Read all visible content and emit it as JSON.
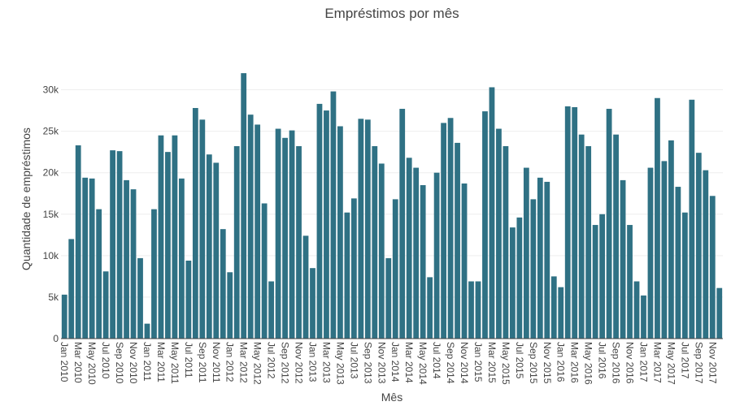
{
  "chart_data": {
    "type": "bar",
    "title": "Empréstimos por mês",
    "xlabel": "Mês",
    "ylabel": "Quantidade de empréstimos",
    "ylim": [
      0,
      32500
    ],
    "yticks": [
      0,
      5000,
      10000,
      15000,
      20000,
      25000,
      30000
    ],
    "ytick_labels": [
      "0",
      "5k",
      "10k",
      "15k",
      "20k",
      "25k",
      "30k"
    ],
    "grid": true,
    "bar_color": "#2f7184",
    "categories": [
      "Jan 2010",
      "Feb 2010",
      "Mar 2010",
      "Apr 2010",
      "May 2010",
      "Jun 2010",
      "Jul 2010",
      "Aug 2010",
      "Sep 2010",
      "Oct 2010",
      "Nov 2010",
      "Dec 2010",
      "Jan 2011",
      "Feb 2011",
      "Mar 2011",
      "Apr 2011",
      "May 2011",
      "Jun 2011",
      "Jul 2011",
      "Aug 2011",
      "Sep 2011",
      "Oct 2011",
      "Nov 2011",
      "Dec 2011",
      "Jan 2012",
      "Feb 2012",
      "Mar 2012",
      "Apr 2012",
      "May 2012",
      "Jun 2012",
      "Jul 2012",
      "Aug 2012",
      "Sep 2012",
      "Oct 2012",
      "Nov 2012",
      "Dec 2012",
      "Jan 2013",
      "Feb 2013",
      "Mar 2013",
      "Apr 2013",
      "May 2013",
      "Jun 2013",
      "Jul 2013",
      "Aug 2013",
      "Sep 2013",
      "Oct 2013",
      "Nov 2013",
      "Dec 2013",
      "Jan 2014",
      "Feb 2014",
      "Mar 2014",
      "Apr 2014",
      "May 2014",
      "Jun 2014",
      "Jul 2014",
      "Aug 2014",
      "Sep 2014",
      "Oct 2014",
      "Nov 2014",
      "Dec 2014",
      "Jan 2015",
      "Feb 2015",
      "Mar 2015",
      "Apr 2015",
      "May 2015",
      "Jun 2015",
      "Jul 2015",
      "Aug 2015",
      "Sep 2015",
      "Oct 2015",
      "Nov 2015",
      "Dec 2015",
      "Jan 2016",
      "Feb 2016",
      "Mar 2016",
      "Apr 2016",
      "May 2016",
      "Jun 2016",
      "Jul 2016",
      "Aug 2016",
      "Sep 2016",
      "Oct 2016",
      "Nov 2016",
      "Dec 2016",
      "Jan 2017",
      "Feb 2017",
      "Mar 2017",
      "Apr 2017",
      "May 2017",
      "Jun 2017",
      "Jul 2017",
      "Aug 2017",
      "Sep 2017",
      "Oct 2017",
      "Nov 2017",
      "Dec 2017"
    ],
    "xtick_labels": [
      "Jan 2010",
      "Mar 2010",
      "May 2010",
      "Jul 2010",
      "Sep 2010",
      "Nov 2010",
      "Jan 2011",
      "Mar 2011",
      "May 2011",
      "Jul 2011",
      "Sep 2011",
      "Nov 2011",
      "Jan 2012",
      "Mar 2012",
      "May 2012",
      "Jul 2012",
      "Sep 2012",
      "Nov 2012",
      "Jan 2013",
      "Mar 2013",
      "May 2013",
      "Jul 2013",
      "Sep 2013",
      "Nov 2013",
      "Jan 2014",
      "Mar 2014",
      "May 2014",
      "Jul 2014",
      "Sep 2014",
      "Nov 2014",
      "Jan 2015",
      "Mar 2015",
      "May 2015",
      "Jul 2015",
      "Sep 2015",
      "Nov 2015",
      "Jan 2016",
      "Mar 2016",
      "May 2016",
      "Jul 2016",
      "Sep 2016",
      "Nov 2016",
      "Jan 2017",
      "Mar 2017",
      "May 2017",
      "Jul 2017",
      "Sep 2017",
      "Nov 2017"
    ],
    "values": [
      5300,
      12000,
      23300,
      19400,
      19300,
      15600,
      8100,
      22700,
      22600,
      19100,
      18000,
      9700,
      1800,
      15600,
      24500,
      22500,
      24500,
      19300,
      9400,
      27800,
      26400,
      22200,
      21200,
      13200,
      8000,
      23200,
      32000,
      27000,
      25800,
      16300,
      6900,
      25300,
      24200,
      25100,
      23200,
      12400,
      8500,
      28300,
      27500,
      29800,
      25600,
      15200,
      16900,
      26500,
      26400,
      23200,
      21100,
      9700,
      16800,
      27700,
      21800,
      20600,
      18500,
      7400,
      20000,
      26000,
      26600,
      23600,
      18700,
      6900,
      6900,
      27400,
      30300,
      25300,
      23200,
      13400,
      14600,
      20600,
      16800,
      19400,
      18900,
      7500,
      6200,
      28000,
      27900,
      24600,
      23200,
      13700,
      15000,
      27700,
      24600,
      19100,
      13700,
      6900,
      5200,
      20600,
      29000,
      21400,
      23900,
      18300,
      15200,
      28800,
      22400,
      20300,
      17200,
      6100
    ]
  }
}
